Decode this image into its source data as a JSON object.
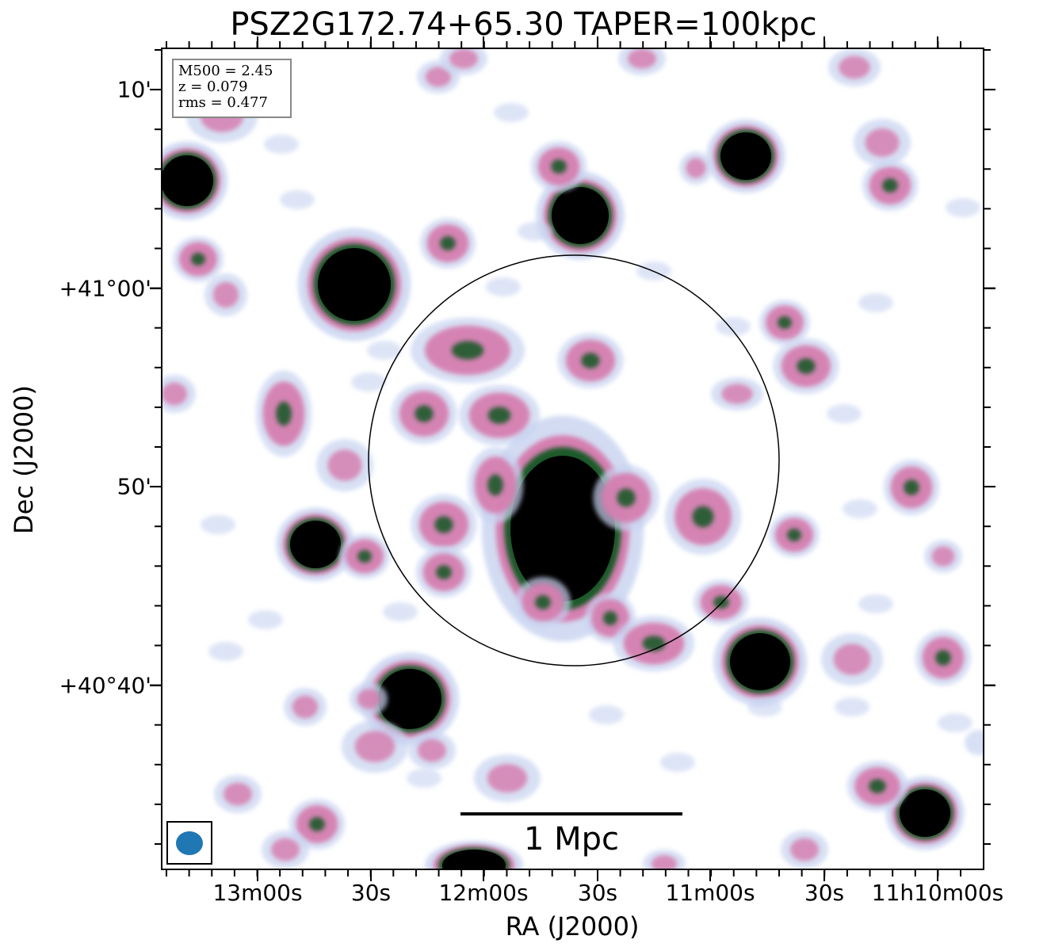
{
  "title": "PSZ2G172.74+65.30 TAPER=100kpc",
  "info": {
    "m500": "M500 = 2.45",
    "z": "z = 0.079",
    "rms": "rms = 0.477"
  },
  "scalebar": "1 Mpc",
  "axes": {
    "xlabel": "RA (J2000)",
    "ylabel": "Dec (J2000)",
    "yticks": [
      "10'",
      "+41°00'",
      "50'",
      "+40°40'"
    ],
    "xticks": [
      "13m00s",
      "30s",
      "12m00s",
      "30s",
      "11m00s",
      "30s",
      "11h10m00s"
    ]
  },
  "colors": {
    "beam": "#1f77b4",
    "faint": "#c7d3f0",
    "pink": "#d57fb0",
    "green": "#1f5a2a",
    "core": "#000000"
  }
}
